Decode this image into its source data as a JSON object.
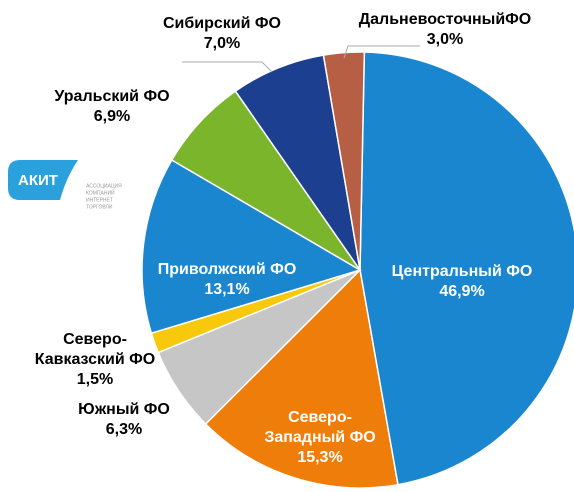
{
  "chart_data": {
    "type": "pie",
    "categories": [
      "Центральный ФО",
      "Северо-Западный ФО",
      "Южный ФО",
      "Северо-Кавказский ФО",
      "Приволжский ФО",
      "Уральский ФО",
      "Сибирский ФО",
      "ДальневосточныйФО"
    ],
    "values": [
      46.9,
      15.3,
      6.3,
      1.5,
      13.1,
      6.9,
      7.0,
      3.0
    ],
    "value_labels": [
      "46,9%",
      "15,3%",
      "6,3%",
      "1,5%",
      "13,1%",
      "6,9%",
      "7,0%",
      "3,0%"
    ],
    "colors": [
      "#1a86d0",
      "#ef7d0a",
      "#c6c6c6",
      "#f8c80c",
      "#1a86d0",
      "#7ab52c",
      "#1c3f8f",
      "#b65f45"
    ]
  },
  "logo": {
    "text": "АКИТ",
    "caption": [
      "АССОЦИАЦИЯ",
      "КОМПАНИЙ",
      "ИНТЕРНЕТ",
      "ТОРГОВЛИ"
    ]
  }
}
